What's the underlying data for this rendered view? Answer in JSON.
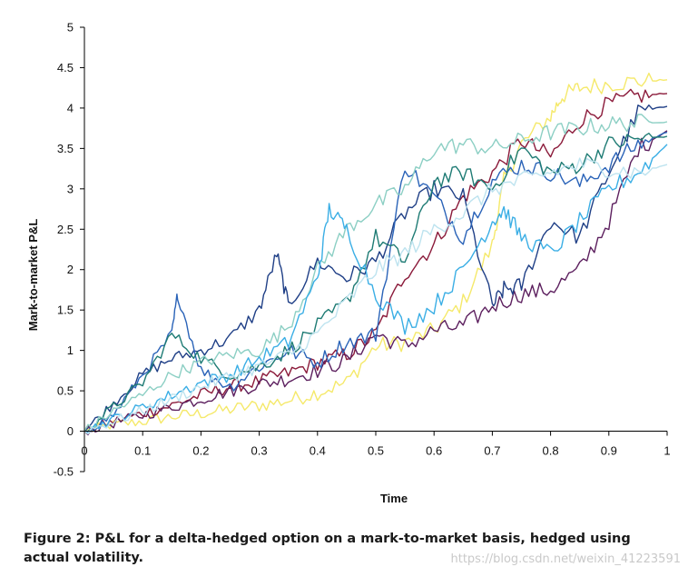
{
  "chart_data": {
    "type": "line",
    "title": "",
    "xlabel": "Time",
    "ylabel": "Mark-to-market P&L",
    "xlim": [
      0,
      1
    ],
    "ylim": [
      -0.5,
      5
    ],
    "xticks": [
      0,
      0.1,
      0.2,
      0.3,
      0.4,
      0.5,
      0.6,
      0.7,
      0.8,
      0.9,
      1
    ],
    "yticks": [
      -0.5,
      0,
      0.5,
      1,
      1.5,
      2,
      2.5,
      3,
      3.5,
      4,
      4.5,
      5
    ],
    "xtick_labels": [
      "0",
      "0.1",
      "0.2",
      "0.3",
      "0.4",
      "0.5",
      "0.6",
      "0.7",
      "0.8",
      "0.9",
      "1"
    ],
    "ytick_labels": [
      "-0.5",
      "0",
      "0.5",
      "1",
      "1.5",
      "2",
      "2.5",
      "3",
      "3.5",
      "4",
      "4.5",
      "5"
    ],
    "grid": false,
    "legend": "none",
    "series": [
      {
        "name": "path-yellow",
        "color": "#f5e96a",
        "x": [
          0,
          0.05,
          0.1,
          0.15,
          0.2,
          0.25,
          0.3,
          0.35,
          0.4,
          0.45,
          0.5,
          0.55,
          0.6,
          0.65,
          0.7,
          0.72,
          0.75,
          0.8,
          0.82,
          0.85,
          0.9,
          0.95,
          1
        ],
        "y": [
          0,
          0.08,
          0.12,
          0.18,
          0.22,
          0.27,
          0.32,
          0.38,
          0.48,
          0.6,
          1.05,
          1.1,
          1.25,
          1.6,
          2.3,
          3.1,
          3.55,
          3.9,
          4.15,
          4.25,
          4.3,
          4.33,
          4.35
        ]
      },
      {
        "name": "path-maroon",
        "color": "#8b1a3a",
        "x": [
          0,
          0.05,
          0.1,
          0.15,
          0.2,
          0.25,
          0.3,
          0.35,
          0.4,
          0.45,
          0.5,
          0.55,
          0.6,
          0.65,
          0.7,
          0.75,
          0.8,
          0.85,
          0.9,
          0.95,
          1
        ],
        "y": [
          0,
          0.12,
          0.22,
          0.32,
          0.45,
          0.55,
          0.62,
          0.72,
          0.85,
          0.95,
          1.2,
          1.95,
          2.3,
          2.9,
          3.2,
          3.6,
          3.4,
          3.85,
          4.05,
          4.15,
          4.18
        ]
      },
      {
        "name": "path-purple",
        "color": "#5c1f5e",
        "x": [
          0,
          0.05,
          0.1,
          0.15,
          0.2,
          0.25,
          0.3,
          0.35,
          0.4,
          0.45,
          0.5,
          0.55,
          0.6,
          0.65,
          0.7,
          0.75,
          0.8,
          0.85,
          0.9,
          0.95,
          1
        ],
        "y": [
          0,
          0.1,
          0.2,
          0.3,
          0.4,
          0.5,
          0.58,
          0.65,
          0.75,
          0.88,
          1.2,
          1.05,
          1.25,
          1.3,
          1.55,
          1.7,
          1.75,
          2.0,
          2.6,
          3.5,
          3.72
        ]
      },
      {
        "name": "path-navy",
        "color": "#1f3f86",
        "x": [
          0,
          0.05,
          0.1,
          0.15,
          0.2,
          0.25,
          0.3,
          0.33,
          0.35,
          0.4,
          0.45,
          0.5,
          0.55,
          0.6,
          0.65,
          0.7,
          0.72,
          0.75,
          0.8,
          0.85,
          0.9,
          0.95,
          1
        ],
        "y": [
          0,
          0.35,
          0.7,
          0.9,
          1.0,
          1.15,
          1.5,
          2.2,
          1.55,
          2.1,
          1.9,
          2.1,
          2.7,
          3.0,
          2.9,
          1.55,
          1.75,
          1.8,
          2.6,
          2.4,
          3.2,
          3.95,
          4.02
        ]
      },
      {
        "name": "path-blue",
        "color": "#2a63b8",
        "x": [
          0,
          0.05,
          0.1,
          0.15,
          0.16,
          0.2,
          0.25,
          0.3,
          0.35,
          0.4,
          0.45,
          0.5,
          0.55,
          0.6,
          0.65,
          0.7,
          0.75,
          0.8,
          0.85,
          0.9,
          0.95,
          1
        ],
        "y": [
          0,
          0.2,
          0.7,
          1.2,
          1.7,
          0.75,
          0.55,
          0.8,
          1.0,
          0.85,
          1.1,
          1.2,
          3.3,
          2.9,
          2.4,
          3.1,
          3.3,
          3.2,
          3.05,
          3.3,
          3.55,
          3.7
        ]
      },
      {
        "name": "path-teal",
        "color": "#1e7b74",
        "x": [
          0,
          0.05,
          0.1,
          0.15,
          0.2,
          0.25,
          0.3,
          0.35,
          0.4,
          0.45,
          0.5,
          0.55,
          0.6,
          0.65,
          0.7,
          0.75,
          0.8,
          0.85,
          0.9,
          0.95,
          1
        ],
        "y": [
          0,
          0.3,
          0.6,
          1.2,
          0.9,
          0.7,
          0.8,
          1.0,
          1.3,
          1.6,
          2.4,
          2.1,
          3.1,
          3.2,
          3.0,
          3.5,
          3.2,
          3.3,
          3.55,
          3.62,
          3.65
        ]
      },
      {
        "name": "path-mint",
        "color": "#8ccfc4",
        "x": [
          0,
          0.05,
          0.1,
          0.15,
          0.2,
          0.25,
          0.3,
          0.35,
          0.4,
          0.45,
          0.5,
          0.55,
          0.6,
          0.65,
          0.7,
          0.75,
          0.8,
          0.85,
          0.9,
          0.95,
          1
        ],
        "y": [
          0,
          0.25,
          0.45,
          0.7,
          0.85,
          0.95,
          1.0,
          1.3,
          2.0,
          2.5,
          2.8,
          3.0,
          3.5,
          3.55,
          3.5,
          3.6,
          3.7,
          3.75,
          3.8,
          3.82,
          3.83
        ]
      },
      {
        "name": "path-skyblue",
        "color": "#3aaee5",
        "x": [
          0,
          0.05,
          0.1,
          0.15,
          0.2,
          0.25,
          0.3,
          0.35,
          0.4,
          0.42,
          0.45,
          0.5,
          0.55,
          0.6,
          0.65,
          0.7,
          0.72,
          0.75,
          0.8,
          0.85,
          0.9,
          0.95,
          1
        ],
        "y": [
          0,
          0.15,
          0.3,
          0.45,
          0.6,
          0.7,
          0.9,
          1.1,
          1.9,
          2.75,
          2.5,
          1.7,
          1.3,
          1.55,
          2.0,
          2.6,
          2.75,
          2.4,
          2.2,
          2.6,
          3.0,
          3.2,
          3.55
        ]
      },
      {
        "name": "path-paleblue",
        "color": "#bde3ef",
        "x": [
          0,
          0.05,
          0.1,
          0.15,
          0.2,
          0.25,
          0.3,
          0.35,
          0.4,
          0.45,
          0.5,
          0.55,
          0.6,
          0.65,
          0.7,
          0.75,
          0.8,
          0.85,
          0.9,
          0.95,
          1
        ],
        "y": [
          0,
          0.12,
          0.25,
          0.4,
          0.55,
          0.68,
          0.8,
          0.95,
          1.2,
          1.6,
          2.0,
          2.2,
          2.5,
          2.7,
          3.0,
          3.1,
          3.2,
          3.3,
          3.25,
          3.2,
          3.3
        ]
      }
    ]
  },
  "caption": {
    "text": "Figure 2:  P&L for a delta-hedged option on a mark-to-market basis, hedged using actual volatility."
  },
  "watermark": "https://blog.csdn.net/weixin_41223591"
}
